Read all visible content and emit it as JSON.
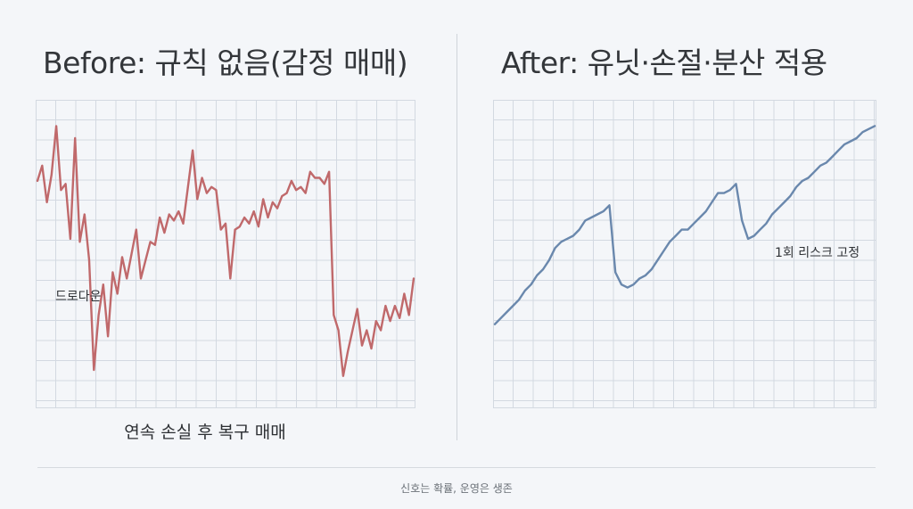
{
  "footer": "신호는 확률, 운영은 생존",
  "colors": {
    "background": "#f4f6f9",
    "grid": "#d3d9e1",
    "before_line": "#c0696b",
    "after_line": "#6a88ad"
  },
  "chart_data": [
    {
      "type": "line",
      "title": "Before: 규칙 없음(감정 매매)",
      "caption": "연속 손실 후 복구 매매",
      "annotation": "드로다운",
      "grid": true,
      "xlim": [
        0,
        76
      ],
      "ylim": [
        0,
        100
      ],
      "series": [
        {
          "color": "#c0696b",
          "values": [
            74,
            79,
            67,
            76,
            92,
            71,
            73,
            55,
            88,
            54,
            63,
            48,
            12,
            30,
            40,
            23,
            44,
            37,
            49,
            42,
            50,
            58,
            42,
            48,
            54,
            53,
            62,
            57,
            63,
            61,
            64,
            60,
            72,
            84,
            68,
            75,
            70,
            72,
            71,
            58,
            60,
            42,
            58,
            59,
            62,
            60,
            64,
            59,
            68,
            62,
            67,
            65,
            69,
            70,
            74,
            71,
            72,
            70,
            77,
            75,
            75,
            73,
            77,
            30,
            25,
            10,
            18,
            25,
            32,
            20,
            25,
            19,
            28,
            25,
            33,
            28,
            33,
            29,
            37,
            30,
            42
          ]
        }
      ]
    },
    {
      "type": "line",
      "title": "After: 유닛·손절·분산 적용",
      "annotation": "1회 리스크 고정",
      "grid": true,
      "xlim": [
        0,
        76
      ],
      "ylim": [
        0,
        100
      ],
      "series": [
        {
          "color": "#6a88ad",
          "values": [
            27,
            29,
            31,
            33,
            35,
            38,
            40,
            43,
            45,
            48,
            52,
            54,
            55,
            56,
            58,
            61,
            62,
            63,
            64,
            66,
            44,
            40,
            39,
            40,
            42,
            43,
            45,
            48,
            51,
            54,
            56,
            58,
            58,
            60,
            62,
            64,
            67,
            70,
            70,
            71,
            73,
            61,
            55,
            56,
            58,
            60,
            63,
            65,
            67,
            69,
            72,
            74,
            75,
            77,
            79,
            80,
            82,
            84,
            86,
            87,
            88,
            90,
            91,
            92
          ]
        }
      ]
    }
  ]
}
